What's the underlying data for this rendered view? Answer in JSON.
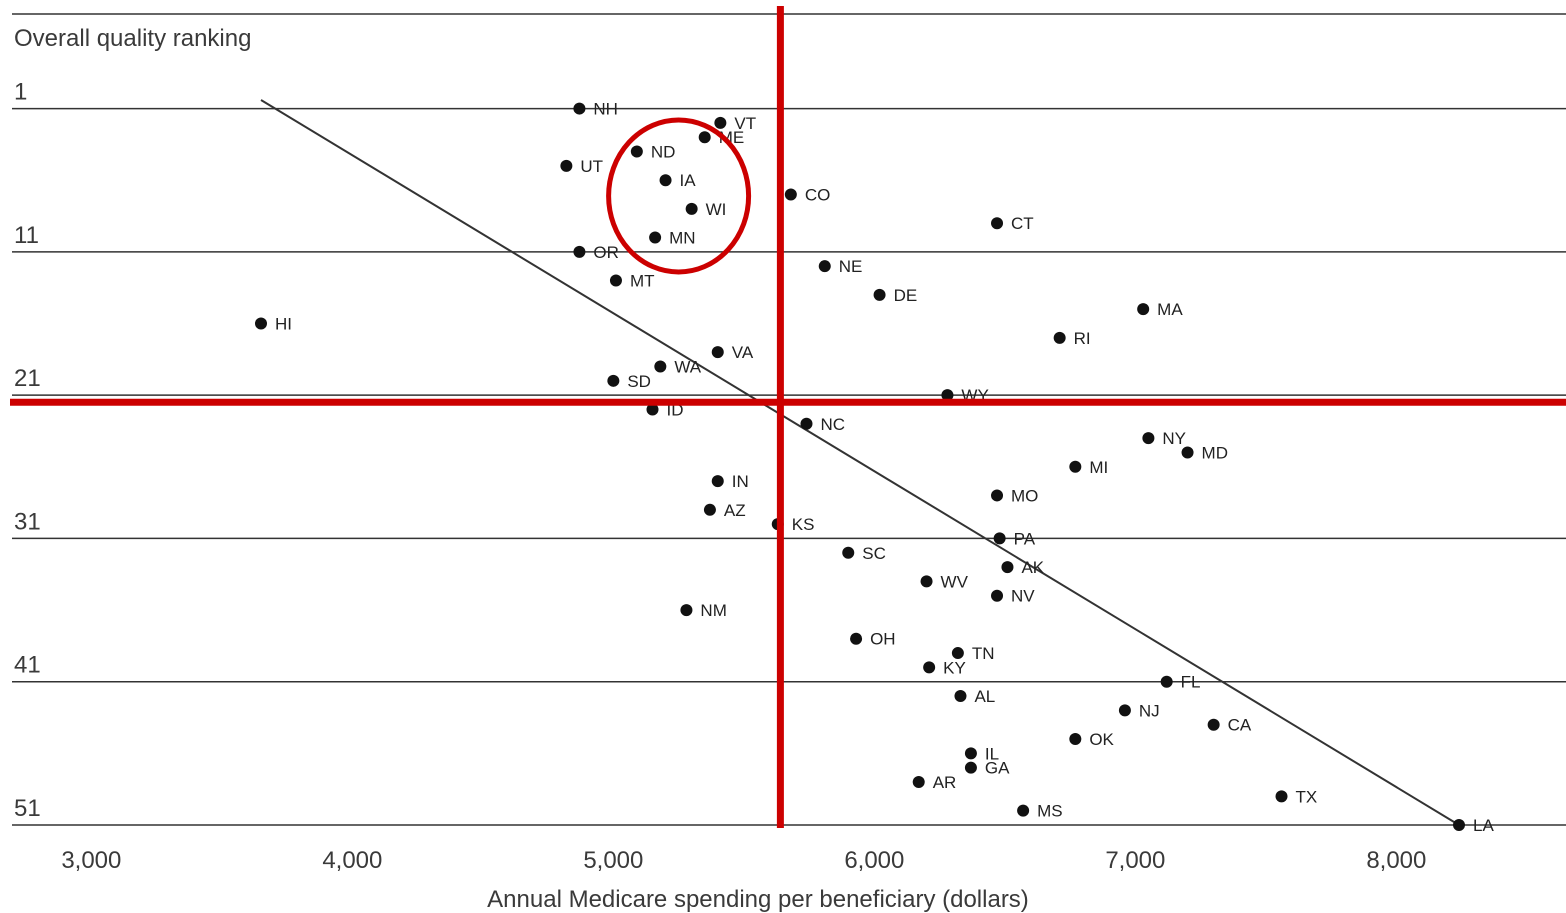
{
  "chart_data": {
    "type": "scatter",
    "title": "",
    "ylabel": "Overall quality ranking",
    "xlabel": "Annual Medicare spending per beneficiary (dollars)",
    "xlim": [
      2650,
      8650
    ],
    "ylim": [
      -5.6,
      51
    ],
    "y_inverted": true,
    "x_ticks": [
      3000,
      4000,
      5000,
      6000,
      7000,
      8000
    ],
    "x_tick_labels": [
      "3,000",
      "4,000",
      "5,000",
      "6,000",
      "7,000",
      "8,000"
    ],
    "y_ticks": [
      1,
      11,
      21,
      31,
      41,
      51
    ],
    "y_tick_labels": [
      "1",
      "11",
      "21",
      "31",
      "41",
      "51"
    ],
    "grid": "horizontal",
    "points": [
      {
        "label": "NH",
        "x": 4870,
        "y": 1
      },
      {
        "label": "VT",
        "x": 5410,
        "y": 2
      },
      {
        "label": "ME",
        "x": 5350,
        "y": 3
      },
      {
        "label": "ND",
        "x": 5090,
        "y": 4
      },
      {
        "label": "UT",
        "x": 4820,
        "y": 5
      },
      {
        "label": "IA",
        "x": 5200,
        "y": 6
      },
      {
        "label": "CO",
        "x": 5680,
        "y": 7
      },
      {
        "label": "WI",
        "x": 5300,
        "y": 8
      },
      {
        "label": "CT",
        "x": 6470,
        "y": 9
      },
      {
        "label": "MN",
        "x": 5160,
        "y": 10
      },
      {
        "label": "OR",
        "x": 4870,
        "y": 11
      },
      {
        "label": "NE",
        "x": 5810,
        "y": 12
      },
      {
        "label": "MT",
        "x": 5010,
        "y": 13
      },
      {
        "label": "DE",
        "x": 6020,
        "y": 14
      },
      {
        "label": "MA",
        "x": 7030,
        "y": 15
      },
      {
        "label": "HI",
        "x": 3650,
        "y": 16
      },
      {
        "label": "RI",
        "x": 6710,
        "y": 17
      },
      {
        "label": "VA",
        "x": 5400,
        "y": 18
      },
      {
        "label": "WA",
        "x": 5180,
        "y": 19
      },
      {
        "label": "SD",
        "x": 5000,
        "y": 20
      },
      {
        "label": "WY",
        "x": 6280,
        "y": 21
      },
      {
        "label": "ID",
        "x": 5150,
        "y": 22
      },
      {
        "label": "NC",
        "x": 5740,
        "y": 23
      },
      {
        "label": "NY",
        "x": 7050,
        "y": 24
      },
      {
        "label": "MD",
        "x": 7200,
        "y": 25
      },
      {
        "label": "MI",
        "x": 6770,
        "y": 26
      },
      {
        "label": "IN",
        "x": 5400,
        "y": 27
      },
      {
        "label": "MO",
        "x": 6470,
        "y": 28
      },
      {
        "label": "AZ",
        "x": 5370,
        "y": 29
      },
      {
        "label": "KS",
        "x": 5630,
        "y": 30
      },
      {
        "label": "PA",
        "x": 6480,
        "y": 31
      },
      {
        "label": "SC",
        "x": 5900,
        "y": 32
      },
      {
        "label": "AK",
        "x": 6510,
        "y": 33
      },
      {
        "label": "WV",
        "x": 6200,
        "y": 34
      },
      {
        "label": "NV",
        "x": 6470,
        "y": 35
      },
      {
        "label": "NM",
        "x": 5280,
        "y": 36
      },
      {
        "label": "OH",
        "x": 5930,
        "y": 38
      },
      {
        "label": "TN",
        "x": 6320,
        "y": 39
      },
      {
        "label": "KY",
        "x": 6210,
        "y": 40
      },
      {
        "label": "FL",
        "x": 7120,
        "y": 41
      },
      {
        "label": "AL",
        "x": 6330,
        "y": 42
      },
      {
        "label": "NJ",
        "x": 6960,
        "y": 43
      },
      {
        "label": "CA",
        "x": 7300,
        "y": 44
      },
      {
        "label": "OK",
        "x": 6770,
        "y": 45
      },
      {
        "label": "IL",
        "x": 6370,
        "y": 46
      },
      {
        "label": "GA",
        "x": 6370,
        "y": 47
      },
      {
        "label": "AR",
        "x": 6170,
        "y": 48
      },
      {
        "label": "TX",
        "x": 7560,
        "y": 49
      },
      {
        "label": "MS",
        "x": 6570,
        "y": 50
      },
      {
        "label": "LA",
        "x": 8240,
        "y": 51
      }
    ],
    "trend_line": {
      "x1": 3650,
      "y1": 0.4,
      "x2": 8240,
      "y2": 51
    },
    "annotations": {
      "vertical_line_x": 5640,
      "horizontal_line_y": 21.5,
      "circle_center": {
        "x": 5250,
        "y": 7.1
      },
      "color": "#cc0000"
    },
    "colors": {
      "points": "#111111",
      "grid": "#333333",
      "trend": "#333333",
      "annotation": "#cc0000"
    }
  }
}
